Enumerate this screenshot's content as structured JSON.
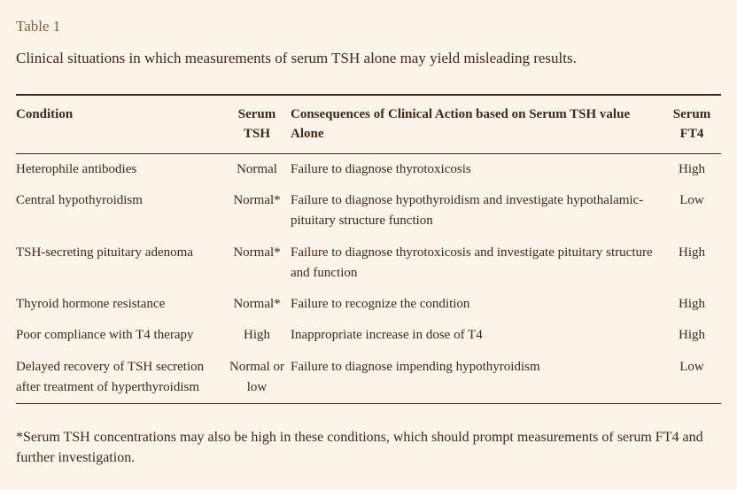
{
  "colors": {
    "background": "#fcf4e8",
    "text": "#3a2a1a",
    "label": "#8a5a3a",
    "rule": "#3a2a1a"
  },
  "table_label": "Table 1",
  "caption": "Clinical situations in which measurements of serum TSH alone may yield misleading results.",
  "columns": {
    "condition": "Condition",
    "tsh": "Serum TSH",
    "conseq": "Consequences of Clinical Action based on Serum TSH value Alone",
    "ft4": "Serum FT4"
  },
  "rows": [
    {
      "condition": "Heterophile antibodies",
      "tsh": "Normal",
      "conseq": "Failure to diagnose thyrotoxicosis",
      "ft4": "High"
    },
    {
      "condition": "Central hypothyroidism",
      "tsh": "Normal*",
      "conseq": "Failure to diagnose hypothyroidism and investigate hypothalamic-pituitary structure function",
      "ft4": "Low"
    },
    {
      "condition": "TSH-secreting pituitary adenoma",
      "tsh": "Normal*",
      "conseq": "Failure to diagnose thyrotoxicosis and investigate pituitary structure and function",
      "ft4": "High"
    },
    {
      "condition": "Thyroid hormone resistance",
      "tsh": "Normal*",
      "conseq": "Failure to recognize the condition",
      "ft4": "High"
    },
    {
      "condition": "Poor compliance with T4 therapy",
      "tsh": "High",
      "conseq": "Inappropriate increase in dose of T4",
      "ft4": "High"
    },
    {
      "condition": "Delayed recovery of TSH secretion after treatment of hyperthyroidism",
      "tsh": "Normal or low",
      "conseq": "Failure to diagnose impending hypothyroidism",
      "ft4": "Low"
    }
  ],
  "footnote": "*Serum TSH concentrations may also be high in these conditions, which should prompt measurements of serum FT4 and further investigation."
}
